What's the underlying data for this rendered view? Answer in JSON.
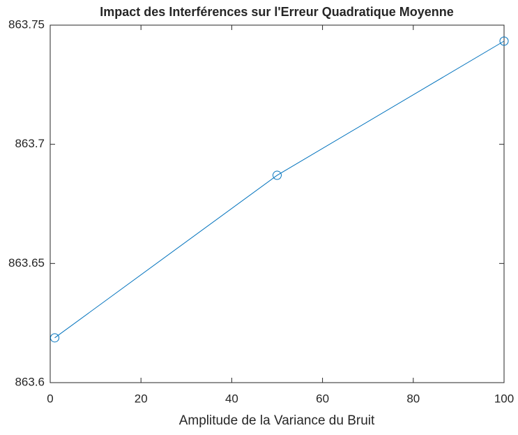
{
  "chart_data": {
    "type": "line",
    "title": "Impact des Interférences sur l'Erreur Quadratique Moyenne",
    "x_label": "Amplitude de la Variance du Bruit",
    "x": [
      1,
      50,
      100
    ],
    "series": [
      {
        "color": "#0072BD",
        "values": [
          863.6188,
          863.687,
          863.7433
        ]
      }
    ],
    "xlim": [
      0,
      100
    ],
    "xticks": [
      0,
      20,
      40,
      60,
      80,
      100
    ],
    "ylim": [
      863.6,
      863.75
    ],
    "yticks": [
      863.6,
      863.65,
      863.7,
      863.75
    ],
    "marker": "circle"
  }
}
